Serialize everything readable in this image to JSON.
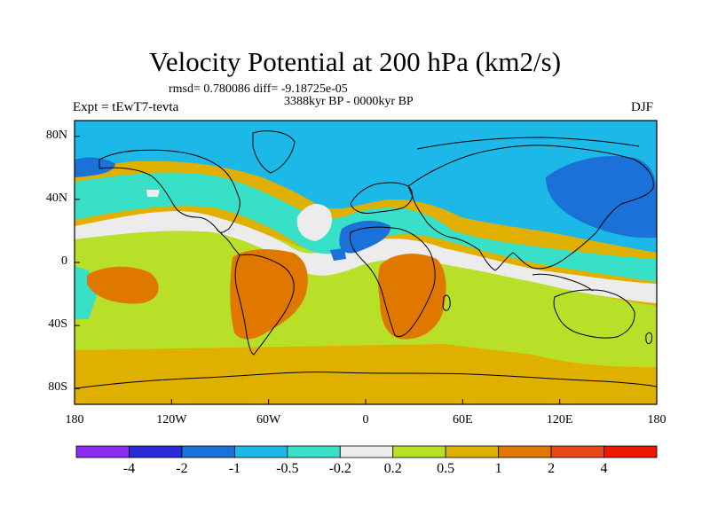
{
  "title": "Velocity Potential at 200 hPa (km2/s)",
  "stats": "rmsd= 0.780086 diff= -9.18725e-05",
  "period": "3388kyr BP - 0000kyr BP",
  "experiment": "Expt = tEwT7-tevta",
  "season": "DJF",
  "lat_ticks": [
    {
      "label": "80N",
      "value": 80
    },
    {
      "label": "40N",
      "value": 40
    },
    {
      "label": "0",
      "value": 0
    },
    {
      "label": "40S",
      "value": -40
    },
    {
      "label": "80S",
      "value": -80
    }
  ],
  "lon_ticks": [
    {
      "label": "180",
      "value": -180
    },
    {
      "label": "120W",
      "value": -120
    },
    {
      "label": "60W",
      "value": -60
    },
    {
      "label": "0",
      "value": 0
    },
    {
      "label": "60E",
      "value": 60
    },
    {
      "label": "120E",
      "value": 120
    },
    {
      "label": "180",
      "value": 180
    }
  ],
  "colorbar": {
    "colors": [
      "#8c2cf0",
      "#2a2ad6",
      "#1a72d8",
      "#1cb8e8",
      "#38e0c8",
      "#ececec",
      "#b8e028",
      "#e0b000",
      "#e07800",
      "#e84818",
      "#ee1800"
    ],
    "labels": [
      "-4",
      "-2",
      "-1",
      "-0.5",
      "-0.2",
      "0.2",
      "0.5",
      "1",
      "2",
      "4"
    ]
  }
}
